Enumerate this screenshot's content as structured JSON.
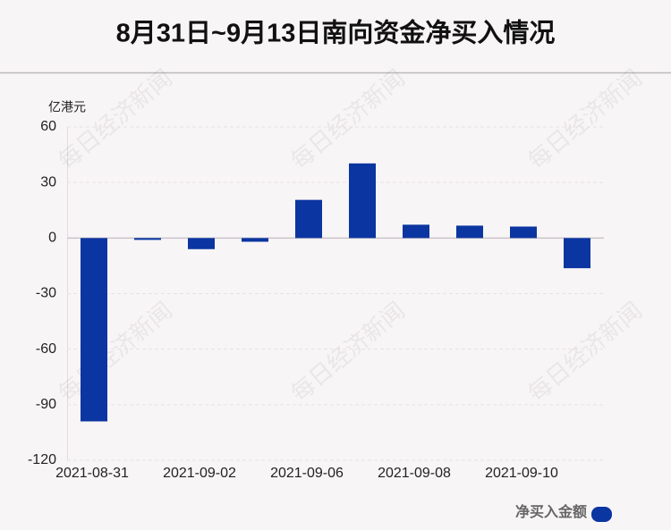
{
  "chart_data": {
    "type": "bar",
    "title": "8月31日~9月13日南向资金净买入情况",
    "y_unit_label": "亿港元",
    "watermark": "每日经济新闻",
    "categories": [
      "2021-08-31",
      null,
      "2021-09-02",
      null,
      "2021-09-06",
      null,
      "2021-09-08",
      null,
      "2021-09-10",
      null
    ],
    "series": [
      {
        "name": "净买入金额",
        "color": "#0b35a0",
        "values": [
          -99,
          -1,
          -6,
          -2,
          20.6,
          40.3,
          7.2,
          6.7,
          6.2,
          -16.3
        ]
      }
    ],
    "ylim": [
      -120,
      60
    ],
    "yticks": [
      -120,
      -90,
      -60,
      -30,
      0,
      30,
      60
    ],
    "grid": true,
    "legend": "bottom-right"
  }
}
